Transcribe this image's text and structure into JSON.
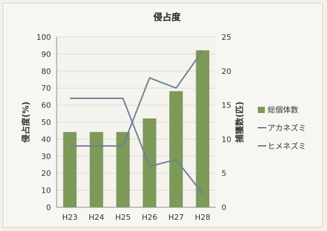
{
  "chart_data": {
    "type": "bar",
    "title": "侵占度",
    "categories": [
      "H23",
      "H24",
      "H25",
      "H26",
      "H27",
      "H28"
    ],
    "left_axis": {
      "label": "侵占度(%)",
      "ylim": [
        0,
        100
      ],
      "ticks": [
        0,
        10,
        20,
        30,
        40,
        50,
        60,
        70,
        80,
        90,
        100
      ]
    },
    "right_axis": {
      "label": "捕獲数(匹)",
      "ylim": [
        0,
        25
      ],
      "ticks": [
        0,
        5,
        10,
        15,
        20,
        25
      ]
    },
    "series": [
      {
        "name": "総個体数",
        "kind": "bar",
        "axis": "left",
        "color": "#7e9a58",
        "values": [
          44,
          44,
          44,
          52,
          68,
          92
        ]
      },
      {
        "name": "アカネズミ",
        "kind": "line",
        "axis": "right",
        "color": "#6f7f94",
        "values": [
          16,
          16,
          16,
          6,
          7,
          2
        ]
      },
      {
        "name": "ヒメネズミ",
        "kind": "line",
        "axis": "right",
        "color": "#6f7f94",
        "values": [
          9,
          9,
          9,
          19,
          17.5,
          23
        ]
      }
    ],
    "grid": true,
    "legend_position": "right"
  }
}
